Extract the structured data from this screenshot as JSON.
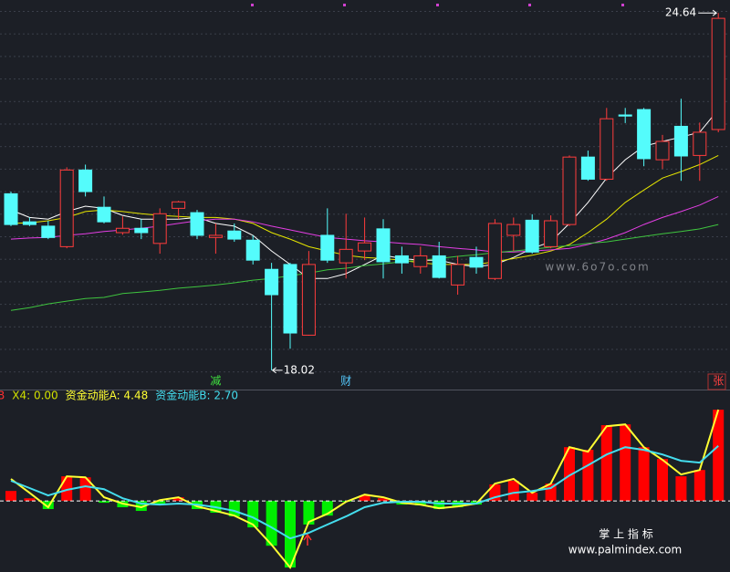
{
  "chart_data": [
    {
      "type": "candlestick",
      "open": [
        21.29,
        20.77,
        20.69,
        20.31,
        21.73,
        21.04,
        20.57,
        20.65,
        20.37,
        21.02,
        20.94,
        20.48,
        20.6,
        20.43,
        19.89,
        19.98,
        18.67,
        20.52,
        20.01,
        20.23,
        20.64,
        20.14,
        19.94,
        20.14,
        19.6,
        20.11,
        19.72,
        20.52,
        20.8,
        20.31,
        20.72,
        21.97,
        21.56,
        22.75,
        22.85,
        21.92,
        22.54,
        22.0,
        22.48
      ],
      "high": [
        21.33,
        20.85,
        20.79,
        21.78,
        21.83,
        21.24,
        20.87,
        20.82,
        21.02,
        21.16,
        20.99,
        20.74,
        20.74,
        20.52,
        20.01,
        20.01,
        20.23,
        21.02,
        20.92,
        20.85,
        20.82,
        20.31,
        20.31,
        20.4,
        20.14,
        20.31,
        20.82,
        20.85,
        20.91,
        20.89,
        22.0,
        22.09,
        22.88,
        22.88,
        22.88,
        22.38,
        23.05,
        22.61,
        24.64
      ],
      "low": [
        20.69,
        20.69,
        20.45,
        20.28,
        21.24,
        20.74,
        20.53,
        20.45,
        20.18,
        20.82,
        20.45,
        20.18,
        20.4,
        19.98,
        18.02,
        18.42,
        18.66,
        20.01,
        19.72,
        20.06,
        19.72,
        19.81,
        19.81,
        19.72,
        19.42,
        19.81,
        19.69,
        20.23,
        20.18,
        20.28,
        20.69,
        21.53,
        21.53,
        22.6,
        21.8,
        21.75,
        21.53,
        21.53,
        22.43
      ],
      "close": [
        20.72,
        20.72,
        20.48,
        21.73,
        21.33,
        20.77,
        20.65,
        20.57,
        20.92,
        21.14,
        20.52,
        20.52,
        20.45,
        20.06,
        19.42,
        18.71,
        19.98,
        20.06,
        20.26,
        20.38,
        20.03,
        20.01,
        20.14,
        19.74,
        19.98,
        19.93,
        20.74,
        20.72,
        20.21,
        20.79,
        21.97,
        21.56,
        22.68,
        22.73,
        21.94,
        22.26,
        21.99,
        22.43,
        24.54
      ],
      "up_color": "#ff3c3c",
      "down_color": "#54fcfc",
      "ylim": [
        17.95,
        24.88
      ],
      "series": [
        {
          "color": "#ffffff",
          "values": [
            20.99,
            20.85,
            20.82,
            20.96,
            21.06,
            21.02,
            20.89,
            20.82,
            20.82,
            20.82,
            20.85,
            20.74,
            20.69,
            20.52,
            20.23,
            19.98,
            19.72,
            19.72,
            19.81,
            19.98,
            20.15,
            20.09,
            20.06,
            20.06,
            19.98,
            19.94,
            19.98,
            20.11,
            20.28,
            20.4,
            20.74,
            21.13,
            21.58,
            21.92,
            22.17,
            22.26,
            22.34,
            22.43,
            22.85
          ]
        },
        {
          "color": "#e6e600",
          "values": [
            20.74,
            20.75,
            20.79,
            20.85,
            20.96,
            20.99,
            20.96,
            20.92,
            20.89,
            20.87,
            20.85,
            20.85,
            20.82,
            20.74,
            20.57,
            20.45,
            20.31,
            20.23,
            20.15,
            20.11,
            20.09,
            20.06,
            20.01,
            19.98,
            19.98,
            19.98,
            20.03,
            20.09,
            20.15,
            20.23,
            20.35,
            20.57,
            20.82,
            21.13,
            21.36,
            21.58,
            21.7,
            21.83,
            22.0
          ]
        },
        {
          "color": "#e33ee3",
          "values": [
            20.45,
            20.47,
            20.48,
            20.52,
            20.55,
            20.59,
            20.62,
            20.65,
            20.69,
            20.74,
            20.79,
            20.82,
            20.82,
            20.77,
            20.69,
            20.62,
            20.55,
            20.48,
            20.45,
            20.42,
            20.4,
            20.37,
            20.35,
            20.31,
            20.28,
            20.25,
            20.21,
            20.21,
            20.23,
            20.25,
            20.28,
            20.35,
            20.45,
            20.57,
            20.72,
            20.85,
            20.96,
            21.08,
            21.24
          ]
        },
        {
          "color": "#3fc43f",
          "values": [
            19.13,
            19.18,
            19.25,
            19.3,
            19.35,
            19.37,
            19.44,
            19.47,
            19.5,
            19.54,
            19.57,
            19.6,
            19.64,
            19.69,
            19.72,
            19.77,
            19.82,
            19.88,
            19.91,
            19.96,
            19.99,
            20.03,
            20.06,
            20.09,
            20.13,
            20.16,
            20.2,
            20.23,
            20.26,
            20.3,
            20.33,
            20.37,
            20.4,
            20.45,
            20.5,
            20.55,
            20.59,
            20.64,
            20.72
          ]
        }
      ],
      "event_labels": [
        null,
        null,
        null,
        null,
        null,
        null,
        null,
        null,
        null,
        null,
        null,
        "减",
        null,
        null,
        null,
        null,
        null,
        null,
        "财",
        null,
        null,
        null,
        null,
        null,
        null,
        null,
        null,
        null,
        null,
        null,
        null,
        null,
        null,
        null,
        null,
        null,
        null,
        null,
        "张"
      ],
      "event_colors": [
        null,
        null,
        null,
        null,
        null,
        null,
        null,
        null,
        null,
        null,
        null,
        "#3fe03f",
        null,
        null,
        null,
        null,
        null,
        null,
        "#54c8fc",
        null,
        null,
        null,
        null,
        null,
        null,
        null,
        null,
        null,
        null,
        null,
        null,
        null,
        null,
        null,
        null,
        null,
        null,
        null,
        "#ff4040"
      ],
      "watermark": "www.6o7o.com"
    },
    {
      "type": "bar",
      "values": [
        0.49,
        0.13,
        -0.4,
        1.21,
        1.16,
        -0.09,
        -0.31,
        -0.49,
        -0.18,
        0.18,
        -0.4,
        -0.58,
        -0.76,
        -1.3,
        -2.2,
        -3.27,
        -1.16,
        -0.72,
        -0.04,
        0.27,
        0.13,
        -0.18,
        -0.22,
        -0.4,
        -0.31,
        -0.18,
        0.81,
        0.99,
        0.4,
        0.85,
        2.64,
        2.51,
        3.72,
        3.76,
        2.64,
        2.06,
        1.21,
        1.52,
        4.48
      ],
      "up_color": "#ff0000",
      "down_color": "#00ee00",
      "ylim": [
        -3.49,
        5.47
      ],
      "zero_line": true,
      "series": [
        {
          "color": "#ffff33",
          "values": [
            1.08,
            0.4,
            -0.31,
            1.21,
            1.16,
            0.18,
            -0.13,
            -0.31,
            0.04,
            0.18,
            -0.27,
            -0.49,
            -0.72,
            -1.16,
            -2.15,
            -3.27,
            -1.03,
            -0.63,
            -0.04,
            0.31,
            0.18,
            -0.09,
            -0.18,
            -0.36,
            -0.27,
            -0.13,
            0.85,
            1.08,
            0.4,
            0.85,
            2.64,
            2.42,
            3.67,
            3.76,
            2.64,
            2.02,
            1.3,
            1.52,
            4.48
          ]
        },
        {
          "color": "#44ddee",
          "values": [
            0.99,
            0.63,
            0.27,
            0.54,
            0.72,
            0.58,
            0.13,
            -0.13,
            -0.18,
            -0.13,
            -0.18,
            -0.31,
            -0.49,
            -0.81,
            -1.3,
            -1.84,
            -1.57,
            -1.16,
            -0.76,
            -0.31,
            -0.09,
            -0.04,
            -0.04,
            -0.13,
            -0.13,
            -0.13,
            0.18,
            0.4,
            0.49,
            0.63,
            1.25,
            1.75,
            2.28,
            2.64,
            2.51,
            2.28,
            1.97,
            1.88,
            2.7
          ]
        }
      ],
      "legend": [
        {
          "label": "B",
          "color": "#ff3030"
        },
        {
          "label": "X4: 0.00",
          "color": "#d0e000"
        },
        {
          "label": "资金动能A: 4.48",
          "color": "#ffff33"
        },
        {
          "label": "资金动能B: 2.70",
          "color": "#44ddee"
        }
      ],
      "watermark": [
        "掌 上 指 标",
        "www.palmindex.com"
      ]
    }
  ]
}
